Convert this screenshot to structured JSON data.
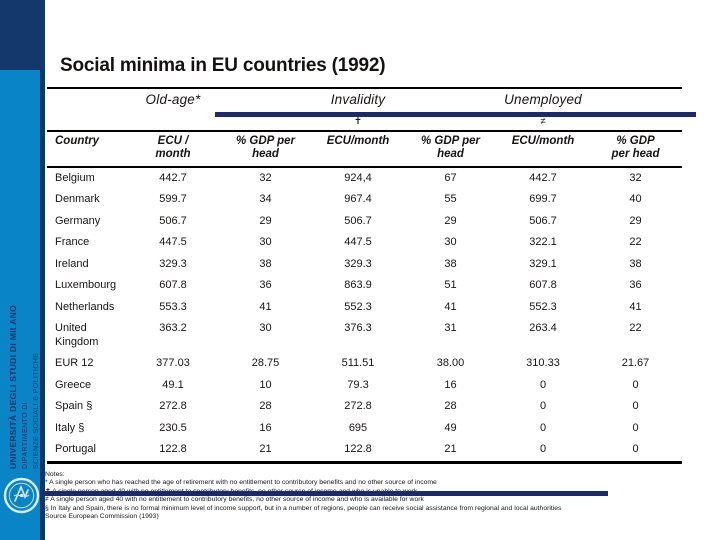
{
  "title": "Social minima in EU countries (1992)",
  "sidebar": {
    "university": "UNIVERSITÀ DEGLI STUDI DI MILANO",
    "department_line1": "DIPARTIMENTO DI",
    "department_line2": "SCIENZE SOCIALI E POLITICHE",
    "logo": "university-seal"
  },
  "colors": {
    "sidebar_blue": "#0984c6",
    "sidebar_navy": "#14386b",
    "rule_navy": "#1b2a70",
    "rule_black": "#000000"
  },
  "chart_data": {
    "type": "table",
    "title": "Social minima in EU countries (1992)",
    "column_groups": [
      {
        "label": "Old-age*",
        "symbol": ""
      },
      {
        "label": "Invalidity",
        "symbol": "✝"
      },
      {
        "label": "Unemployed",
        "symbol": "≠"
      }
    ],
    "columns": [
      "Country",
      "ECU /\nmonth",
      "% GDP per\nhead",
      "ECU/month",
      "% GDP per\nhead",
      "ECU/month",
      "% GDP\nper head"
    ],
    "rows": [
      [
        "Belgium",
        "442.7",
        "32",
        "924,4",
        "67",
        "442.7",
        "32"
      ],
      [
        "Denmark",
        "599.7",
        "34",
        "967.4",
        "55",
        "699.7",
        "40"
      ],
      [
        "Germany",
        "506.7",
        "29",
        "506.7",
        "29",
        "506.7",
        "29"
      ],
      [
        "France",
        "447.5",
        "30",
        "447.5",
        "30",
        "322.1",
        "22"
      ],
      [
        "Ireland",
        "329.3",
        "38",
        "329.3",
        "38",
        "329.1",
        "38"
      ],
      [
        "Luxembourg",
        "607.8",
        "36",
        "863.9",
        "51",
        "607.8",
        "36"
      ],
      [
        "Netherlands",
        "553.3",
        "41",
        "552.3",
        "41",
        "552.3",
        "41"
      ],
      [
        "United Kingdom",
        "363.2",
        "30",
        "376.3",
        "31",
        "263.4",
        "22"
      ],
      [
        "EUR 12",
        "377.03",
        "28.75",
        "511.51",
        "38.00",
        "310.33",
        "21.67"
      ],
      [
        "Greece",
        "49.1",
        "10",
        "79.3",
        "16",
        "0",
        "0"
      ],
      [
        "Spain §",
        "272.8",
        "28",
        "272.8",
        "28",
        "0",
        "0"
      ],
      [
        "Italy §",
        "230.5",
        "16",
        "695",
        "49",
        "0",
        "0"
      ],
      [
        "Portugal",
        "122.8",
        "21",
        "122.8",
        "21",
        "0",
        "0"
      ]
    ]
  },
  "notes": {
    "heading": "Notes:",
    "lines": [
      "* A single person who has reached the age of retirement with no entitlement to contributory benefits and no other source of income",
      "✝ A single person aged 40 with no entitlement to contributory benefits, no other source of income and who is unable to work",
      "≠ A single person aged 40 with no entitlement to contributory benefits, no other source of income and who is available for work",
      "§ In Italy and Spain, there is no formal minimum level of income support, but in a number of regions, people can receive social assistance from regional and local authorities",
      "Source European Commission (1993)"
    ]
  }
}
